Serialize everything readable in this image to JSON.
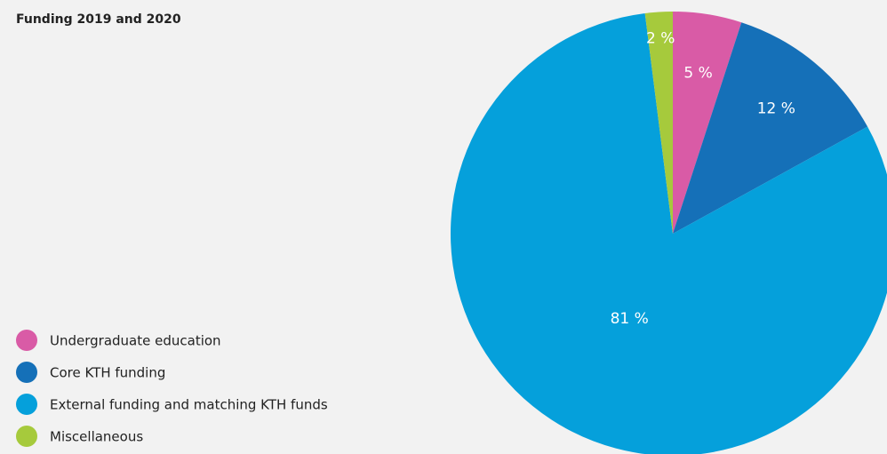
{
  "chart_data": {
    "type": "pie",
    "title": "Funding 2019 and 2020",
    "categories": [
      "Undergraduate education",
      "Core KTH funding",
      "External funding and matching KTH funds",
      "Miscellaneous"
    ],
    "values": [
      5,
      12,
      81,
      2
    ],
    "value_labels": [
      "5 %",
      "12 %",
      "81 %",
      "2 %"
    ],
    "colors": [
      "#d95ba6",
      "#1570b8",
      "#05a0db",
      "#a6ca3c"
    ]
  }
}
